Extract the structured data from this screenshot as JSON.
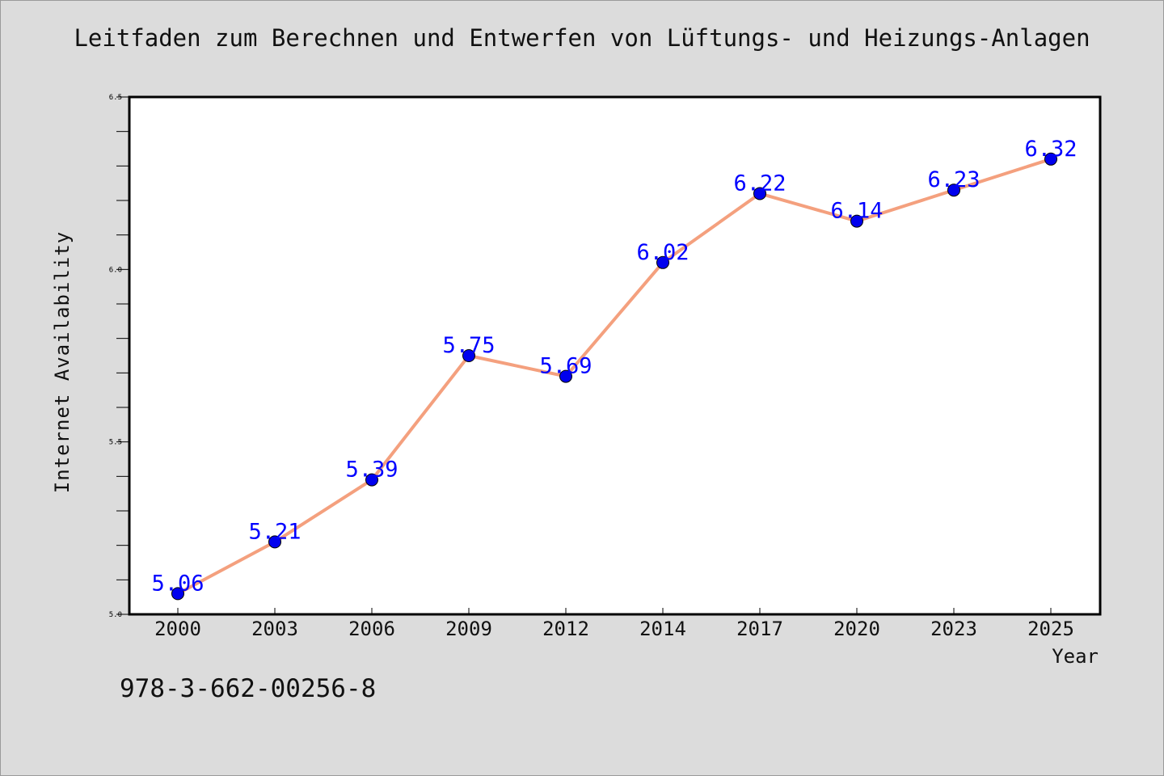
{
  "page": {
    "title": "Leitfaden zum Berechnen und Entwerfen von Lüftungs- und Heizungs-Anlagen",
    "footnote": "978-3-662-00256-8",
    "background_color": "#dcdcdc"
  },
  "chart_data": {
    "type": "line",
    "title": "Leitfaden zum Berechnen und Entwerfen von Lüftungs- und Heizungs-Anlagen",
    "xlabel": "Year",
    "ylabel": "Internet Availability",
    "categories": [
      "2000",
      "2003",
      "2006",
      "2009",
      "2012",
      "2014",
      "2017",
      "2020",
      "2023",
      "2025"
    ],
    "series": [
      {
        "values": [
          5.06,
          5.21,
          5.39,
          5.75,
          5.69,
          6.02,
          6.22,
          6.14,
          6.23,
          6.32
        ],
        "data_labels": [
          "5.06",
          "5.21",
          "5.39",
          "5.75",
          "5.69",
          "6.02",
          "6.22",
          "6.14",
          "6.23",
          "6.32"
        ],
        "line_color": "#f4a07e",
        "marker_color": "#0000ee",
        "label_color": "#0000ff"
      }
    ],
    "ylim": [
      5.0,
      6.5
    ],
    "yticks": [
      "5.0",
      "5.5",
      "6.0",
      "6.5"
    ],
    "ytick_values": [
      5.0,
      5.5,
      6.0,
      6.5
    ],
    "y_minor_step": 0.1,
    "grid": false,
    "legend": "none",
    "plot_background": "#ffffff"
  }
}
